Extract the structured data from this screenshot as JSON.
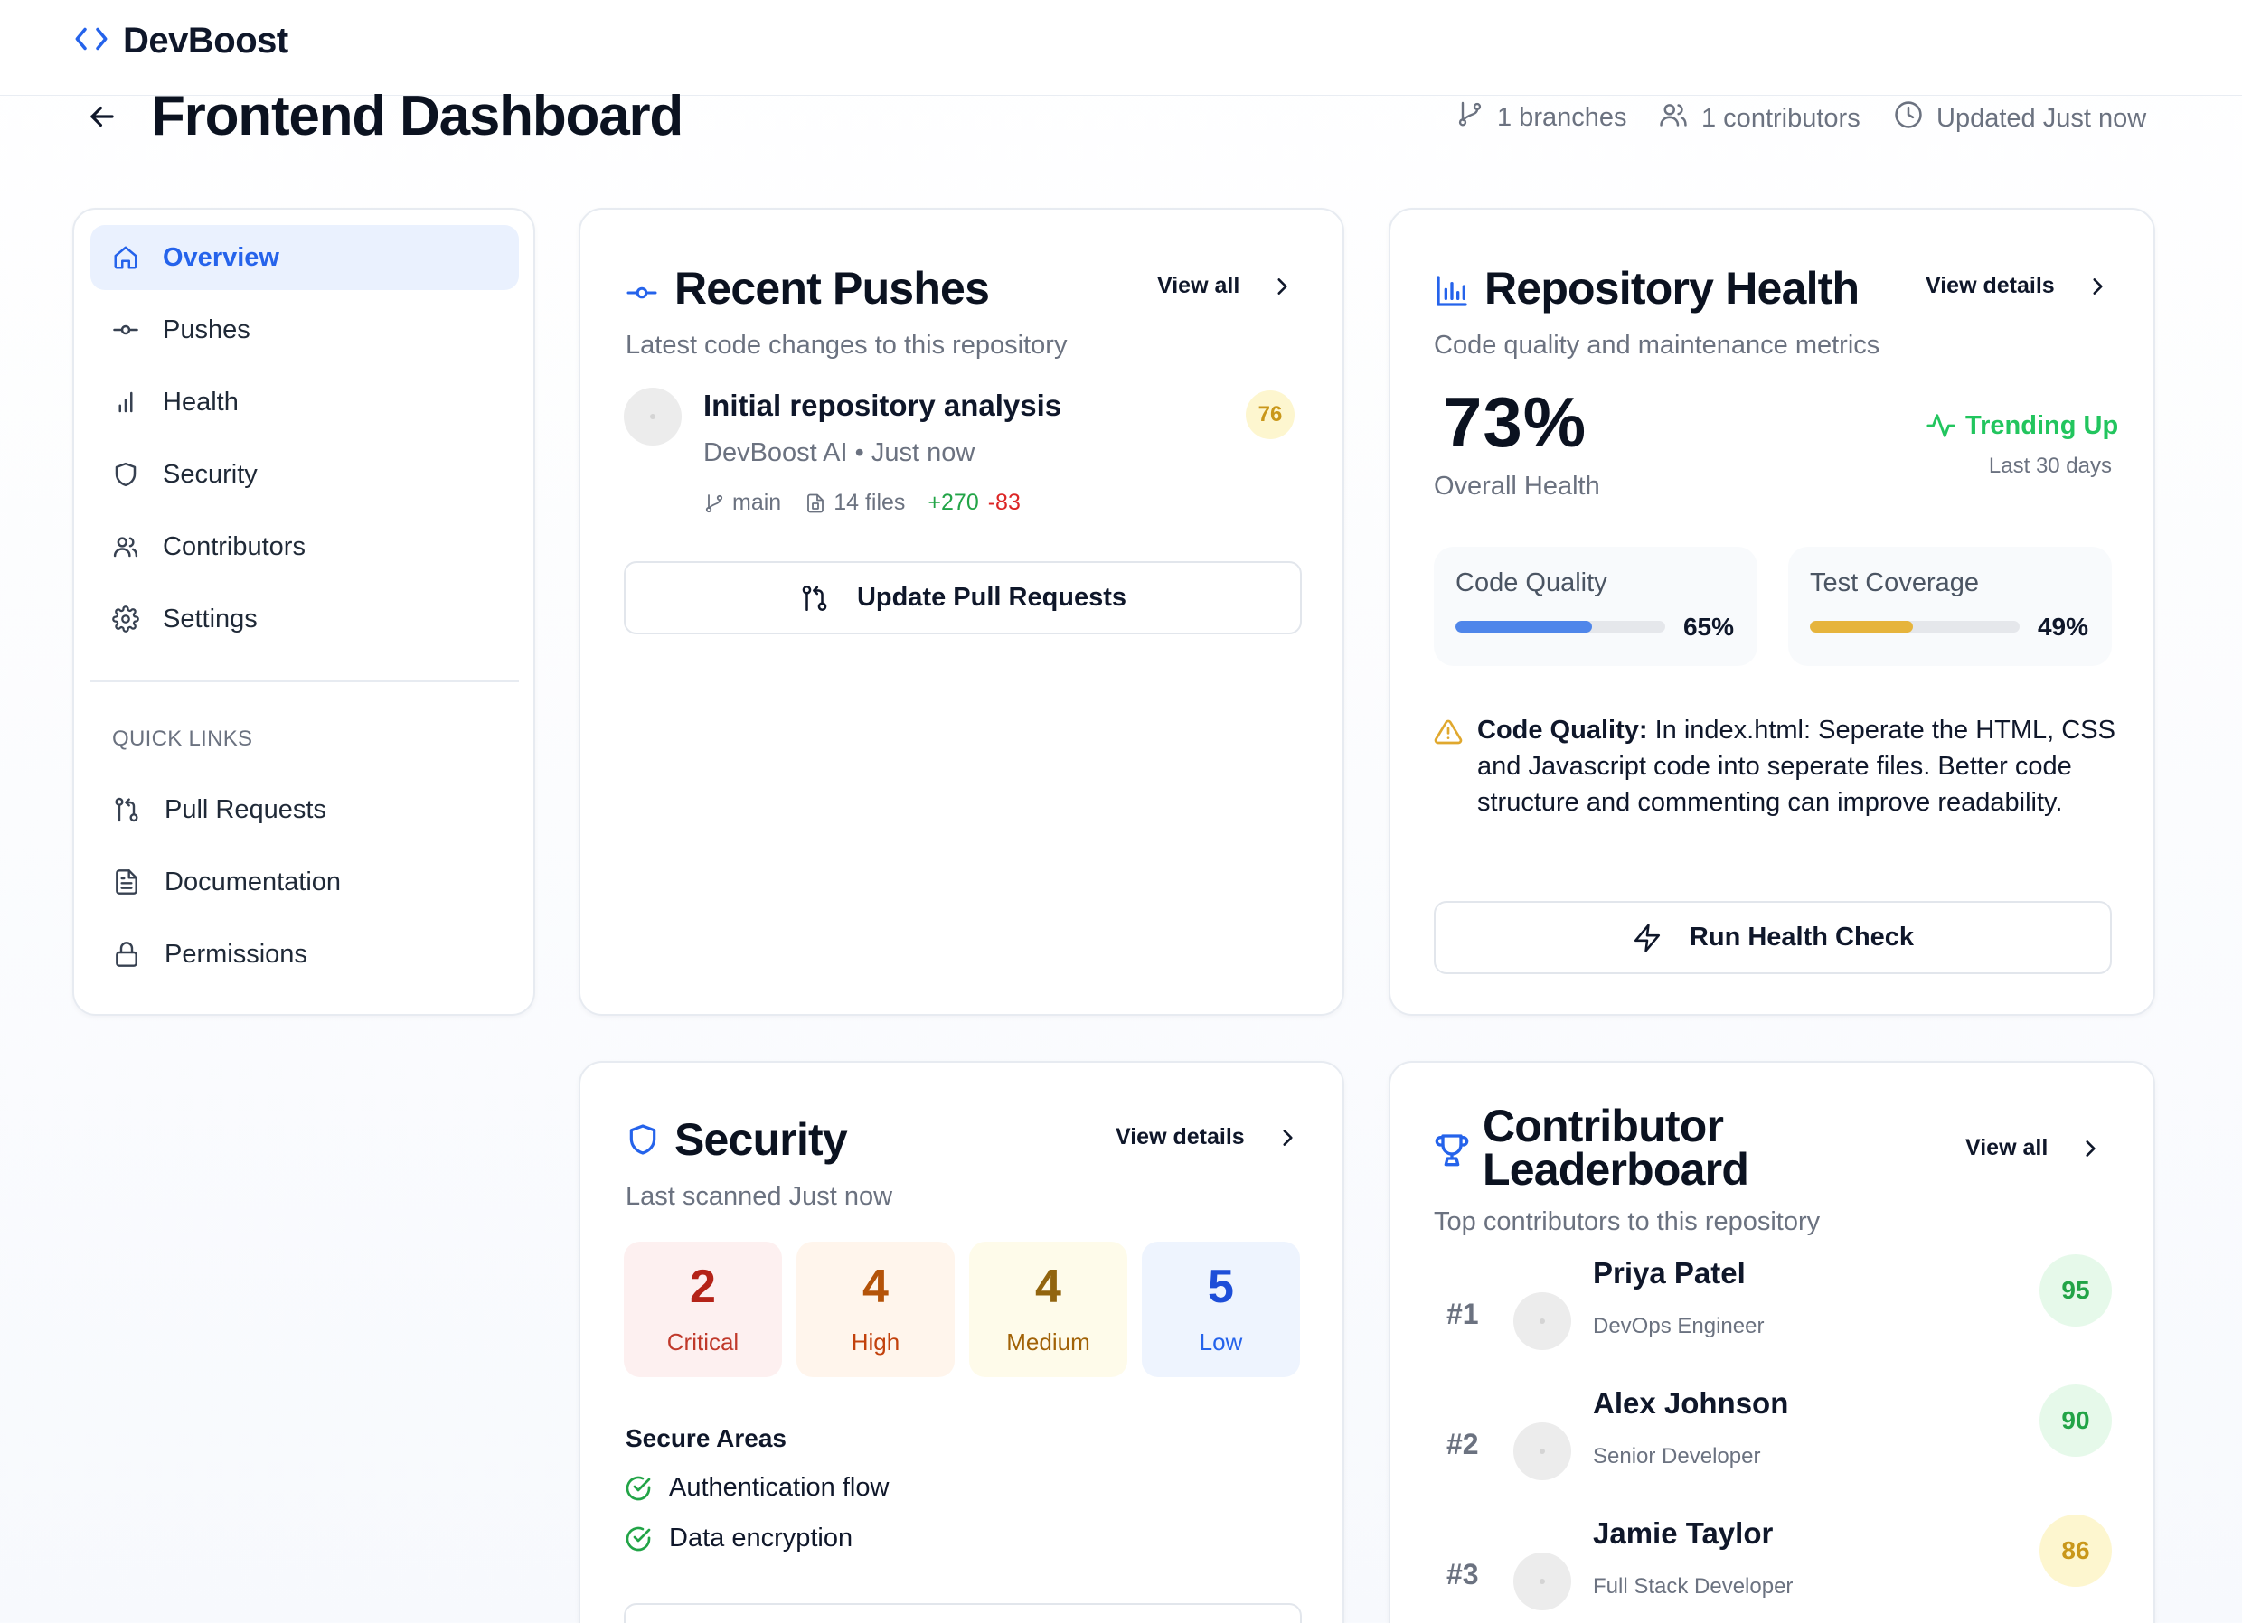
{
  "app": {
    "name": "DevBoost"
  },
  "header": {
    "title": "Frontend Dashboard",
    "branches": "1 branches",
    "contributors": "1 contributors",
    "updated": "Updated Just now"
  },
  "sidebar": {
    "items": [
      {
        "label": "Overview",
        "icon": "home-icon",
        "active": true
      },
      {
        "label": "Pushes",
        "icon": "commit-icon"
      },
      {
        "label": "Health",
        "icon": "bar-chart-icon"
      },
      {
        "label": "Security",
        "icon": "shield-icon"
      },
      {
        "label": "Contributors",
        "icon": "users-icon"
      },
      {
        "label": "Settings",
        "icon": "gear-icon"
      }
    ],
    "quick_links_heading": "QUICK LINKS",
    "quick_links": [
      {
        "label": "Pull Requests",
        "icon": "pull-request-icon"
      },
      {
        "label": "Documentation",
        "icon": "document-icon"
      },
      {
        "label": "Permissions",
        "icon": "lock-icon"
      }
    ]
  },
  "recent_pushes": {
    "title": "Recent Pushes",
    "view_all": "View all",
    "subtitle": "Latest code changes to this repository",
    "push": {
      "message": "Initial repository analysis",
      "author_time": "DevBoost AI • Just now",
      "branch": "main",
      "files": "14 files",
      "additions": "+270",
      "deletions": "-83",
      "score": "76"
    },
    "update_button": "Update Pull Requests"
  },
  "repo_health": {
    "title": "Repository Health",
    "view_details": "View details",
    "subtitle": "Code quality and maintenance metrics",
    "overall_value": "73%",
    "overall_label": "Overall Health",
    "trend_label": "Trending Up",
    "trend_period": "Last 30 days",
    "metrics": [
      {
        "label": "Code Quality",
        "value": "65%",
        "fraction": 0.65,
        "color": "#4f86ea"
      },
      {
        "label": "Test Coverage",
        "value": "49%",
        "fraction": 0.49,
        "color": "#e6b43c"
      }
    ],
    "note_label": "Code Quality:",
    "note_text": " In index.html: Seperate the HTML, CSS and Javascript code into seperate files. Better code structure and commenting can improve readability.",
    "run_button": "Run Health Check"
  },
  "security": {
    "title": "Security",
    "view_details": "View details",
    "subtitle": "Last scanned Just now",
    "severities": [
      {
        "count": "2",
        "label": "Critical",
        "bg": "#fdf0f0",
        "num": "#b42318",
        "text": "#c0392b"
      },
      {
        "count": "4",
        "label": "High",
        "bg": "#fff5ec",
        "num": "#b45309",
        "text": "#c2410c"
      },
      {
        "count": "4",
        "label": "Medium",
        "bg": "#fefbea",
        "num": "#92650f",
        "text": "#a16207"
      },
      {
        "count": "5",
        "label": "Low",
        "bg": "#eef4fe",
        "num": "#1d4ed8",
        "text": "#2563eb"
      }
    ],
    "secure_areas_heading": "Secure Areas",
    "secure_areas": [
      "Authentication flow",
      "Data encryption"
    ]
  },
  "leaderboard": {
    "title_line1": "Contributor",
    "title_line2": "Leaderboard",
    "view_all": "View all",
    "subtitle": "Top contributors to this repository",
    "entries": [
      {
        "rank": "#1",
        "name": "Priya Patel",
        "role": "DevOps Engineer",
        "score": "95",
        "bg": "#e6f9ea",
        "fg": "#22a447"
      },
      {
        "rank": "#2",
        "name": "Alex Johnson",
        "role": "Senior Developer",
        "score": "90",
        "bg": "#e6f9ea",
        "fg": "#22a447"
      },
      {
        "rank": "#3",
        "name": "Jamie Taylor",
        "role": "Full Stack Developer",
        "score": "86",
        "bg": "#fdf6cf",
        "fg": "#c9971a"
      }
    ]
  }
}
